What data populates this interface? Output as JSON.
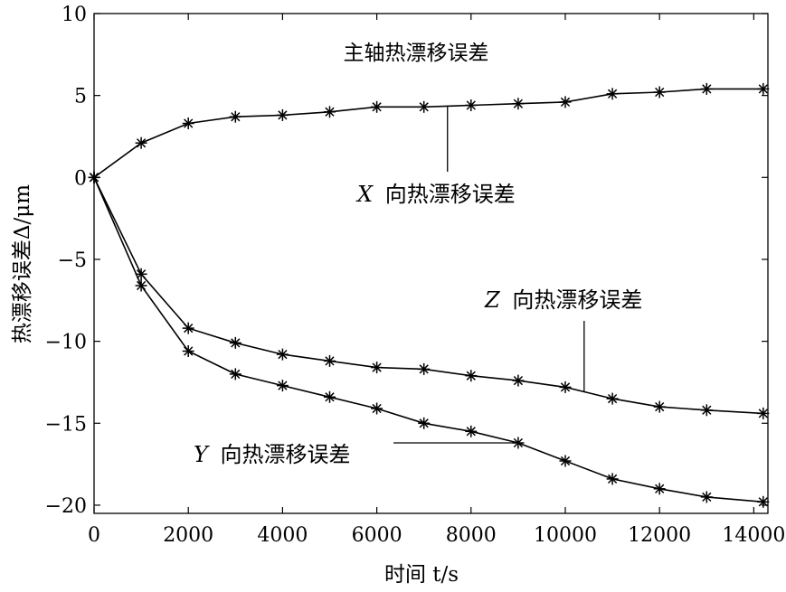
{
  "chart_data": {
    "type": "line",
    "title": "主轴热漂移误差",
    "xlabel": "时间 t/s",
    "ylabel": "热漂移误差Δ/μm",
    "xlim": [
      0,
      14300
    ],
    "ylim": [
      -20.5,
      10
    ],
    "xticks": [
      0,
      2000,
      4000,
      6000,
      8000,
      10000,
      12000,
      14000
    ],
    "yticks": [
      10,
      5,
      0,
      -5,
      -10,
      -15,
      -20
    ],
    "xtick_labels": [
      "0",
      "2000",
      "4000",
      "6000",
      "8000",
      "10000",
      "12000",
      "14000"
    ],
    "ytick_labels": [
      "10",
      "5",
      "0",
      "−5",
      "−10",
      "−15",
      "−20"
    ],
    "grid": false,
    "marker": "asterisk",
    "x": [
      0,
      1000,
      2000,
      3000,
      4000,
      5000,
      6000,
      7000,
      8000,
      9000,
      10000,
      11000,
      12000,
      13000,
      14200
    ],
    "series": [
      {
        "name": "X 向热漂移误差",
        "values": [
          0,
          2.1,
          3.3,
          3.7,
          3.8,
          4.0,
          4.3,
          4.3,
          4.4,
          4.5,
          4.6,
          5.1,
          5.2,
          5.4,
          5.4
        ]
      },
      {
        "name": "Y 向热漂移误差",
        "values": [
          0,
          -6.6,
          -10.6,
          -12.0,
          -12.7,
          -13.4,
          -14.1,
          -15.0,
          -15.5,
          -16.2,
          -17.3,
          -18.4,
          -19.0,
          -19.5,
          -19.8
        ]
      },
      {
        "name": "Z 向热漂移误差",
        "values": [
          0,
          -5.9,
          -9.2,
          -10.1,
          -10.8,
          -11.2,
          -11.6,
          -11.7,
          -12.1,
          -12.4,
          -12.8,
          -13.5,
          -14.0,
          -14.2,
          -14.4
        ]
      }
    ],
    "annotations": [
      {
        "series": "X 向热漂移误差",
        "axis_text": "X",
        "label": "向热漂移误差",
        "at_x": 7500
      },
      {
        "series": "Z 向热漂移误差",
        "axis_text": "Z",
        "label": "向热漂移误差",
        "at_x": 10400
      },
      {
        "series": "Y 向热漂移误差",
        "axis_text": "Y",
        "label": "向热漂移误差",
        "at_x": 9000
      }
    ]
  }
}
